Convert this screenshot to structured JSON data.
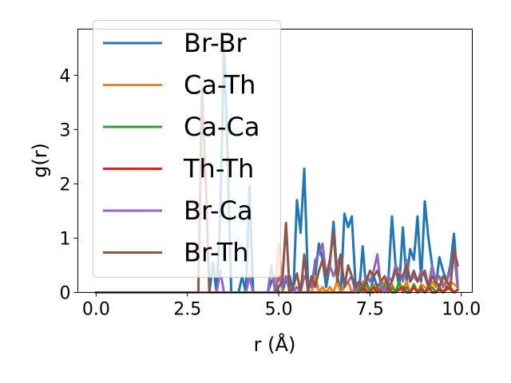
{
  "chart_data": {
    "type": "line",
    "xlabel": "r (Å)",
    "ylabel": "g(r)",
    "xlim": [
      -0.5,
      10.3
    ],
    "ylim": [
      0,
      4.85
    ],
    "xticks": [
      0.0,
      2.5,
      5.0,
      7.5,
      10.0
    ],
    "xtick_labels": [
      "0.0",
      "2.5",
      "5.0",
      "7.5",
      "10.0"
    ],
    "yticks": [
      0,
      1,
      2,
      3,
      4
    ],
    "ytick_labels": [
      "0",
      "1",
      "2",
      "3",
      "4"
    ],
    "grid": false,
    "legend_position": "upper-left",
    "series": [
      {
        "name": "Br-Br",
        "color": "#1f77b4",
        "x": [
          0.0,
          2.9,
          3.0,
          3.1,
          3.2,
          3.3,
          3.4,
          3.5,
          3.6,
          3.7,
          3.8,
          3.9,
          4.0,
          4.1,
          4.2,
          4.3,
          4.4,
          4.5,
          4.6,
          4.7,
          4.8,
          4.9,
          5.0,
          5.1,
          5.2,
          5.3,
          5.4,
          5.5,
          5.6,
          5.7,
          5.8,
          5.9,
          6.0,
          6.1,
          6.2,
          6.3,
          6.4,
          6.5,
          6.6,
          6.7,
          6.8,
          6.9,
          7.0,
          7.1,
          7.2,
          7.3,
          7.4,
          7.5,
          7.6,
          7.7,
          7.8,
          7.9,
          8.0,
          8.1,
          8.2,
          8.3,
          8.4,
          8.5,
          8.6,
          8.7,
          8.8,
          8.9,
          9.0,
          9.1,
          9.2,
          9.3,
          9.4,
          9.5,
          9.6,
          9.7,
          9.8,
          9.9
        ],
        "y": [
          0,
          0,
          0,
          0,
          0.55,
          0,
          1.4,
          4.55,
          2.6,
          0,
          0,
          0,
          0.3,
          0,
          1.95,
          0,
          0,
          0,
          0,
          0,
          0.2,
          0.3,
          0,
          0,
          0.25,
          0.3,
          0,
          1.7,
          1.1,
          2.28,
          0.2,
          0.1,
          0.3,
          0.9,
          0.6,
          0.1,
          0.5,
          1.3,
          0.3,
          0,
          1.45,
          1.2,
          1.4,
          0.2,
          0,
          0.85,
          0,
          0,
          0.3,
          0.1,
          0.2,
          0,
          0.2,
          1.4,
          0.5,
          0.1,
          1.2,
          0.2,
          0.8,
          0.6,
          1.4,
          0.2,
          1.68,
          1.0,
          0.5,
          0.1,
          0.65,
          0.4,
          0.2,
          0.5,
          1.08,
          0.15
        ]
      },
      {
        "name": "Ca-Th",
        "color": "#ff7f0e",
        "x": [
          0.0,
          4.8,
          4.9,
          5.0,
          5.1,
          5.2,
          5.6,
          5.7,
          5.8,
          5.9,
          6.0,
          6.1,
          6.2,
          6.3,
          6.4,
          6.5,
          6.6,
          6.7,
          6.8,
          6.9,
          7.0,
          7.1,
          7.2,
          7.3,
          7.4,
          7.5,
          7.6,
          7.7,
          7.8,
          7.9,
          8.0,
          8.1,
          8.2,
          8.3,
          8.4,
          8.5,
          8.6,
          8.7,
          8.8,
          8.9,
          9.0,
          9.1,
          9.2,
          9.3,
          9.4,
          9.5,
          9.6,
          9.7,
          9.8,
          9.9
        ],
        "y": [
          0,
          0,
          0,
          0.9,
          0,
          0,
          0,
          0,
          0,
          0,
          0.3,
          0,
          0.1,
          0,
          0.1,
          0,
          0.2,
          0,
          0.1,
          0.2,
          0,
          0.1,
          0,
          0.2,
          0.1,
          0,
          0.15,
          0,
          0.1,
          0.2,
          0,
          0.15,
          0,
          0.1,
          0.05,
          0.2,
          0,
          0.1,
          0,
          0.15,
          0.1,
          0.05,
          0.2,
          0.1,
          0.15,
          0.2,
          0.1,
          0.2,
          0.15,
          0.1
        ]
      },
      {
        "name": "Ca-Ca",
        "color": "#2ca02c",
        "x": [
          0.0,
          7.0,
          7.1,
          7.2,
          7.3,
          7.4,
          7.5,
          7.6,
          7.7,
          7.8,
          7.9,
          8.0,
          8.1,
          8.2,
          8.3,
          8.4,
          8.5,
          8.6,
          8.7,
          8.8,
          8.9,
          9.0,
          9.1,
          9.2,
          9.3,
          9.4,
          9.5,
          9.6,
          9.7,
          9.8,
          9.9
        ],
        "y": [
          0,
          0,
          0,
          0.1,
          0,
          0.2,
          0,
          0,
          0.1,
          0,
          0.15,
          0,
          0.1,
          0,
          0.2,
          0,
          0.1,
          0,
          0.15,
          0,
          0.1,
          0,
          0.05,
          0.1,
          0,
          0.1,
          0,
          0.05,
          0.1,
          0,
          0.05
        ]
      },
      {
        "name": "Th-Th",
        "color": "#d62728",
        "x": [
          0.0,
          7.0,
          7.1,
          7.2,
          7.3,
          7.4,
          7.5,
          7.6,
          7.7,
          7.8,
          7.9,
          8.0,
          8.1,
          8.2,
          8.3,
          8.4,
          8.5,
          8.6,
          8.7,
          8.8,
          8.9,
          9.0,
          9.1,
          9.2,
          9.3,
          9.4,
          9.5,
          9.6,
          9.7,
          9.8,
          9.9
        ],
        "y": [
          0,
          0,
          0,
          0,
          0.1,
          0,
          0,
          0.1,
          0,
          0.05,
          0,
          0.1,
          0,
          0,
          0.05,
          0.1,
          0,
          0,
          0.1,
          0,
          0.05,
          0,
          0.1,
          0,
          0,
          0.05,
          0,
          0.1,
          0.05,
          0,
          0.05
        ]
      },
      {
        "name": "Br-Ca",
        "color": "#9467bd",
        "x": [
          0.0,
          2.9,
          3.0,
          3.1,
          3.2,
          3.3,
          3.4,
          3.5,
          3.6,
          3.7,
          3.8,
          3.9,
          4.0,
          4.1,
          4.2,
          4.3,
          4.4,
          4.5,
          4.6,
          4.7,
          4.8,
          4.9,
          5.0,
          5.1,
          5.2,
          5.3,
          5.4,
          5.5,
          5.6,
          5.7,
          5.8,
          5.9,
          6.0,
          6.1,
          6.2,
          6.3,
          6.4,
          6.5,
          6.6,
          6.7,
          6.8,
          6.9,
          7.0,
          7.1,
          7.2,
          7.3,
          7.4,
          7.5,
          7.6,
          7.7,
          7.8,
          7.9,
          8.0,
          8.1,
          8.2,
          8.3,
          8.4,
          8.5,
          8.6,
          8.7,
          8.8,
          8.9,
          9.0,
          9.1,
          9.2,
          9.3,
          9.4,
          9.5,
          9.6,
          9.7,
          9.8,
          9.9
        ],
        "y": [
          0,
          0,
          0,
          0,
          0,
          0,
          0.4,
          0,
          0,
          0,
          0,
          0,
          0,
          0,
          0.3,
          0,
          0,
          0,
          0,
          0,
          0.5,
          0,
          0.3,
          0.1,
          0.3,
          0,
          0,
          0.1,
          0,
          0.3,
          0.2,
          0.1,
          0.6,
          0.7,
          0.9,
          0.3,
          0.5,
          0.3,
          0.5,
          0.7,
          0.1,
          0.2,
          0.3,
          0,
          0.2,
          0.1,
          0.3,
          0.2,
          0.4,
          0.7,
          0.1,
          0,
          0.3,
          0.2,
          0.5,
          0.4,
          0.2,
          0.6,
          0.2,
          0.3,
          0.2,
          0.4,
          0.3,
          0.1,
          0.5,
          0.2,
          0.3,
          0.1,
          0.2,
          0.4,
          0.75,
          0.1
        ]
      },
      {
        "name": "Br-Th",
        "color": "#8c564b",
        "x": [
          0.0,
          2.8,
          2.9,
          3.0,
          3.1,
          3.2,
          3.3,
          3.4,
          3.5,
          3.6,
          3.7,
          3.8,
          3.9,
          4.0,
          4.1,
          4.2,
          4.3,
          4.4,
          4.5,
          4.6,
          4.7,
          4.8,
          4.9,
          5.0,
          5.1,
          5.2,
          5.3,
          5.4,
          5.5,
          5.6,
          5.7,
          5.8,
          5.9,
          6.0,
          6.1,
          6.2,
          6.3,
          6.4,
          6.5,
          6.6,
          6.7,
          6.8,
          6.9,
          7.0,
          7.1,
          7.2,
          7.3,
          7.4,
          7.5,
          7.6,
          7.7,
          7.8,
          7.9,
          8.0,
          8.1,
          8.2,
          8.3,
          8.4,
          8.5,
          8.6,
          8.7,
          8.8,
          8.9,
          9.0,
          9.1,
          9.2,
          9.3,
          9.4,
          9.5,
          9.6,
          9.7,
          9.8,
          9.9
        ],
        "y": [
          0,
          0,
          3.75,
          2.1,
          0,
          0,
          0,
          0,
          0,
          0,
          0,
          0,
          0,
          0,
          0,
          0,
          0,
          0,
          0,
          0,
          0,
          0,
          0,
          0.1,
          0.2,
          1.28,
          0,
          0.1,
          0.35,
          0,
          0.7,
          0,
          0.3,
          0.1,
          0.4,
          0.6,
          0.3,
          0.6,
          1.1,
          0.2,
          0.7,
          0.1,
          0.5,
          0.3,
          0.1,
          0.2,
          0.1,
          0.2,
          0.4,
          0.3,
          0.4,
          0.2,
          0.3,
          0.1,
          0.2,
          0.4,
          0.3,
          0.3,
          0.5,
          0.2,
          0.4,
          0.2,
          0.3,
          0.4,
          0.1,
          0.3,
          0.2,
          0.1,
          0.3,
          0.2,
          0.1,
          0.8,
          0.5
        ]
      }
    ]
  }
}
